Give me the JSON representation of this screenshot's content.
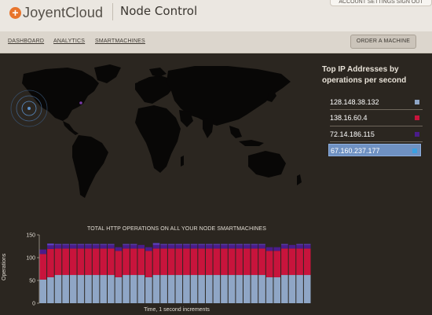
{
  "header": {
    "logo_text": "JoyentCloud",
    "app_title": "Node Control",
    "account_links": "ACCOUNT SETTINGS   SIGN OUT"
  },
  "nav": {
    "items": [
      {
        "label": "DASHBOARD"
      },
      {
        "label": "ANALYTICS"
      },
      {
        "label": "SMARTMACHINES"
      }
    ],
    "order_button": "ORDER A MACHINE"
  },
  "map": {
    "ping_color": "#5b8fc8",
    "marker_color": "#7a3aa8"
  },
  "ip_panel": {
    "title": "Top IP Addresses by operations per second",
    "items": [
      {
        "ip": "128.148.38.132",
        "color": "#8fa6c6",
        "selected": false
      },
      {
        "ip": "138.16.60.4",
        "color": "#c8143c",
        "selected": false
      },
      {
        "ip": "72.14.186.115",
        "color": "#4a1c8a",
        "selected": false
      },
      {
        "ip": "67.160.237.177",
        "color": "#3aa0e0",
        "selected": true
      }
    ]
  },
  "chart_data": {
    "type": "bar",
    "stacked": true,
    "title": "TOTAL HTTP OPERATIONS ON ALL YOUR NODE SMARTMACHINES",
    "xlabel": "Time, 1 second increments",
    "ylabel": "Operations",
    "ylim": [
      0,
      150
    ],
    "yticks": [
      0,
      50,
      100,
      150
    ],
    "grid": false,
    "series": [
      {
        "name": "128.148.38.132",
        "color": "#8fa6c6",
        "values": [
          52,
          57,
          62,
          62,
          62,
          62,
          62,
          62,
          62,
          62,
          57,
          62,
          62,
          62,
          57,
          62,
          62,
          62,
          62,
          62,
          62,
          62,
          62,
          62,
          62,
          62,
          62,
          62,
          62,
          62,
          57,
          57,
          62,
          62,
          62,
          62
        ]
      },
      {
        "name": "138.16.60.4",
        "color": "#c8143c",
        "values": [
          56,
          62,
          58,
          58,
          58,
          58,
          58,
          58,
          58,
          58,
          58,
          58,
          58,
          58,
          58,
          58,
          58,
          58,
          58,
          58,
          58,
          58,
          58,
          58,
          58,
          58,
          58,
          58,
          58,
          58,
          58,
          58,
          58,
          58,
          58,
          58
        ]
      },
      {
        "name": "72.14.186.115",
        "color": "#4a1c8a",
        "values": [
          10,
          8,
          8,
          8,
          8,
          8,
          8,
          8,
          8,
          8,
          8,
          8,
          8,
          8,
          8,
          8,
          8,
          8,
          8,
          8,
          8,
          8,
          8,
          8,
          8,
          8,
          8,
          8,
          8,
          8,
          8,
          8,
          8,
          8,
          8,
          8
        ]
      },
      {
        "name": "67.160.237.177",
        "color": "#5c3ec0",
        "values": [
          0,
          4,
          2,
          2,
          2,
          2,
          2,
          2,
          2,
          2,
          0,
          2,
          2,
          0,
          0,
          4,
          2,
          2,
          2,
          2,
          2,
          2,
          2,
          2,
          2,
          2,
          2,
          2,
          2,
          2,
          0,
          0,
          2,
          0,
          2,
          2
        ]
      }
    ]
  }
}
